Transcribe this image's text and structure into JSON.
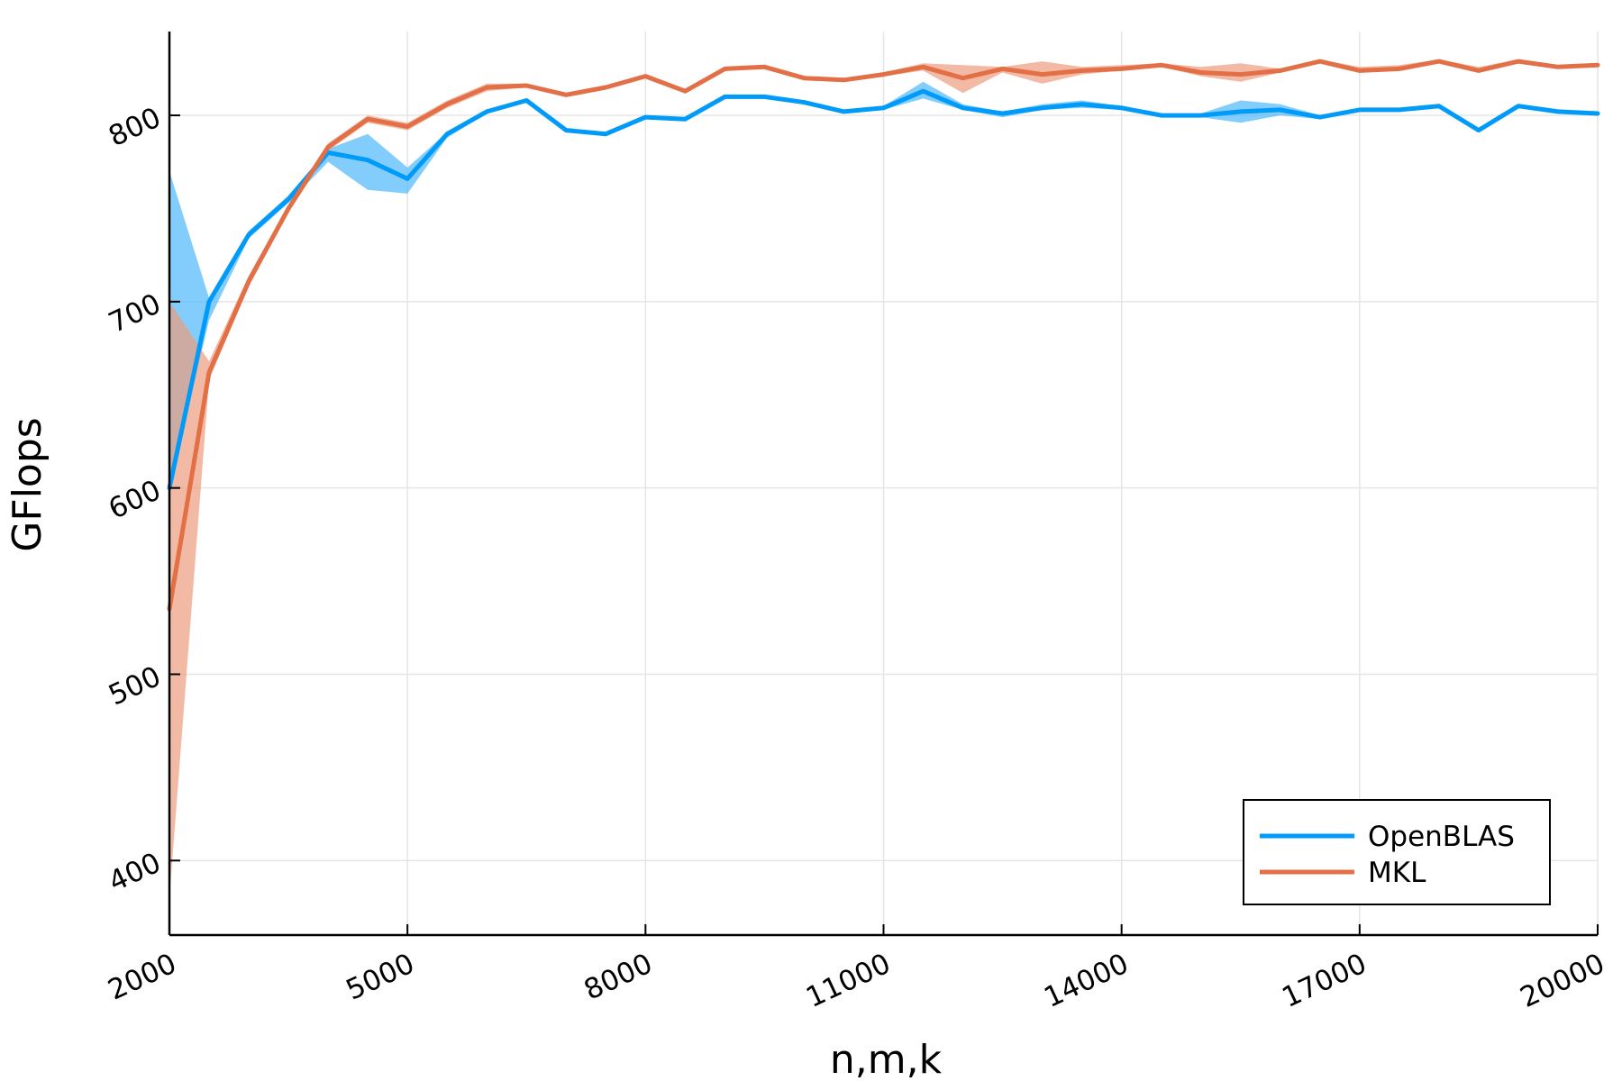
{
  "chart_data": {
    "type": "line",
    "xlabel": "n,m,k",
    "ylabel": "GFlops",
    "xlim": [
      2000,
      20000
    ],
    "ylim": [
      360,
      845
    ],
    "xticks": [
      2000,
      5000,
      8000,
      11000,
      14000,
      17000,
      20000
    ],
    "xtick_labels": [
      "2000",
      "5000",
      "8000",
      "11000",
      "14000",
      "17000",
      "20000"
    ],
    "yticks": [
      400,
      500,
      600,
      700,
      800
    ],
    "ytick_labels": [
      "400",
      "500",
      "600",
      "700",
      "800"
    ],
    "grid": true,
    "legend_position": "bottom-right",
    "x": [
      2000,
      2500,
      3000,
      3500,
      4000,
      4500,
      5000,
      5500,
      6000,
      6500,
      7000,
      7500,
      8000,
      8500,
      9000,
      9500,
      10000,
      10500,
      11000,
      11500,
      12000,
      12500,
      13000,
      13500,
      14000,
      14500,
      15000,
      15500,
      16000,
      16500,
      17000,
      17500,
      18000,
      18500,
      19000,
      19500,
      20000
    ],
    "series": [
      {
        "name": "OpenBLAS",
        "color": "#009af9",
        "band_color": "#4db8fb",
        "values": [
          600,
          700,
          736,
          755,
          780,
          776,
          766,
          790,
          802,
          808,
          792,
          790,
          799,
          798,
          810,
          810,
          807,
          802,
          804,
          813,
          804,
          801,
          804,
          806,
          804,
          800,
          800,
          802,
          803,
          799,
          803,
          803,
          805,
          792,
          805,
          802,
          801
        ],
        "upper": [
          770,
          702,
          738,
          757,
          782,
          790,
          772,
          791,
          803,
          809,
          793,
          791,
          800,
          799,
          811,
          811,
          808,
          803,
          805,
          818,
          806,
          802,
          806,
          808,
          805,
          801,
          801,
          808,
          806,
          800,
          804,
          804,
          806,
          793,
          806,
          803,
          802
        ],
        "lower": [
          600,
          690,
          734,
          753,
          775,
          760,
          758,
          788,
          801,
          807,
          791,
          789,
          798,
          797,
          809,
          809,
          806,
          801,
          803,
          809,
          803,
          799,
          803,
          804,
          803,
          799,
          799,
          796,
          800,
          798,
          802,
          802,
          804,
          791,
          804,
          801,
          800
        ]
      },
      {
        "name": "MKL",
        "color": "#e26f46",
        "band_color": "#ec9c7e",
        "values": [
          535,
          662,
          711,
          750,
          783,
          798,
          794,
          806,
          815,
          816,
          811,
          815,
          821,
          813,
          825,
          826,
          820,
          819,
          822,
          826,
          820,
          825,
          822,
          824,
          825,
          827,
          823,
          822,
          824,
          829,
          824,
          825,
          829,
          824,
          829,
          826,
          827
        ],
        "upper": [
          700,
          668,
          714,
          752,
          785,
          800,
          796,
          808,
          817,
          817,
          812,
          816,
          822,
          814,
          826,
          827,
          821,
          820,
          823,
          828,
          827,
          826,
          829,
          826,
          827,
          828,
          826,
          828,
          825,
          830,
          826,
          827,
          830,
          826,
          830,
          827,
          828
        ],
        "lower": [
          380,
          658,
          708,
          748,
          781,
          796,
          792,
          804,
          813,
          815,
          810,
          814,
          820,
          812,
          824,
          825,
          819,
          818,
          821,
          824,
          812,
          823,
          817,
          822,
          824,
          826,
          821,
          818,
          823,
          828,
          823,
          824,
          828,
          823,
          828,
          825,
          826
        ]
      }
    ]
  }
}
